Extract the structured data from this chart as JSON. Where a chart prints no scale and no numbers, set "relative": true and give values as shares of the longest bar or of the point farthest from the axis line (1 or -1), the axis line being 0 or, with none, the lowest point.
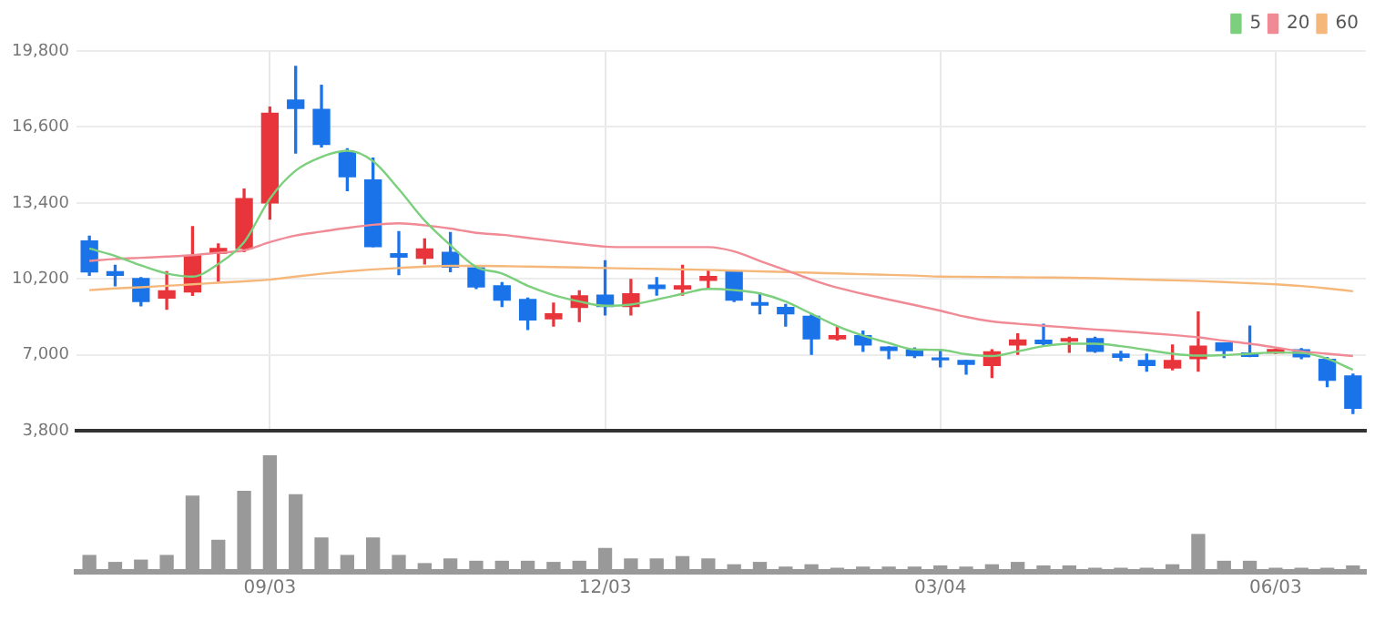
{
  "chart_data": [
    {
      "type": "candlestick",
      "categories": [
        null,
        null,
        null,
        null,
        null,
        null,
        null,
        null,
        null,
        null,
        null,
        null,
        null,
        null,
        null,
        null,
        null,
        null,
        null,
        null,
        null,
        null,
        null,
        null,
        null,
        null,
        null,
        null,
        null,
        null,
        null,
        null,
        null,
        null,
        null,
        null,
        null,
        null,
        null,
        null,
        null,
        null,
        null,
        null,
        null,
        null,
        null,
        null,
        null,
        null
      ],
      "ohlc": [
        [
          11800,
          12000,
          10350,
          10500
        ],
        [
          10500,
          10770,
          9910,
          10350
        ],
        [
          10220,
          10250,
          9070,
          9250
        ],
        [
          9390,
          10500,
          8920,
          9700
        ],
        [
          9650,
          12400,
          9510,
          11170
        ],
        [
          11280,
          11670,
          10100,
          11480
        ],
        [
          11480,
          13980,
          11350,
          13580
        ],
        [
          13400,
          17440,
          12720,
          17180
        ],
        [
          17730,
          19150,
          15500,
          17380
        ],
        [
          17340,
          18360,
          15760,
          15870
        ],
        [
          15550,
          15680,
          13920,
          14500
        ],
        [
          14370,
          15290,
          11560,
          11560
        ],
        [
          11260,
          12190,
          10380,
          11120
        ],
        [
          11070,
          11880,
          10830,
          11460
        ],
        [
          11320,
          12150,
          10510,
          10700
        ],
        [
          10670,
          10750,
          9800,
          9860
        ],
        [
          9910,
          10040,
          9040,
          9310
        ],
        [
          9330,
          9390,
          8070,
          8470
        ],
        [
          8520,
          9180,
          8210,
          8730
        ],
        [
          9000,
          9700,
          8410,
          9490
        ],
        [
          9520,
          10960,
          8680,
          9040
        ],
        [
          9040,
          10180,
          8680,
          9570
        ],
        [
          9940,
          10250,
          9520,
          9800
        ],
        [
          9780,
          10770,
          9520,
          9910
        ],
        [
          10140,
          10570,
          9780,
          10300
        ],
        [
          10490,
          10570,
          9250,
          9310
        ],
        [
          9200,
          9600,
          8730,
          9100
        ],
        [
          9000,
          9120,
          8210,
          8730
        ],
        [
          8620,
          8730,
          7030,
          7680
        ],
        [
          7680,
          8150,
          7630,
          7810
        ],
        [
          7810,
          8000,
          7150,
          7420
        ],
        [
          7330,
          7340,
          6840,
          7190
        ],
        [
          7210,
          7290,
          6890,
          6970
        ],
        [
          6870,
          7230,
          6500,
          6800
        ],
        [
          6760,
          6760,
          6190,
          6600
        ],
        [
          6560,
          7210,
          6050,
          7130
        ],
        [
          7420,
          7890,
          7030,
          7630
        ],
        [
          7620,
          8290,
          7420,
          7480
        ],
        [
          7580,
          7740,
          7110,
          7680
        ],
        [
          7680,
          7740,
          7110,
          7150
        ],
        [
          7030,
          7150,
          6760,
          6900
        ],
        [
          6760,
          7030,
          6320,
          6560
        ],
        [
          6450,
          7420,
          6370,
          6760
        ],
        [
          6840,
          8810,
          6320,
          7370
        ],
        [
          7500,
          7500,
          6890,
          7180
        ],
        [
          7080,
          8210,
          6930,
          6940
        ],
        [
          7080,
          7240,
          7060,
          7220
        ],
        [
          7210,
          7260,
          6840,
          6920
        ],
        [
          6810,
          6890,
          5660,
          5930
        ],
        [
          6110,
          6190,
          4530,
          4750
        ]
      ],
      "colors": [
        "#1a73e8",
        "#1a73e8",
        "#1a73e8",
        "#e8343b",
        "#e8343b",
        "#e8343b",
        "#e8343b",
        "#e8343b",
        "#1a73e8",
        "#1a73e8",
        "#1a73e8",
        "#1a73e8",
        "#1a73e8",
        "#e8343b",
        "#1a73e8",
        "#1a73e8",
        "#1a73e8",
        "#1a73e8",
        "#e8343b",
        "#e8343b",
        "#1a73e8",
        "#e8343b",
        "#1a73e8",
        "#e8343b",
        "#e8343b",
        "#1a73e8",
        "#1a73e8",
        "#1a73e8",
        "#1a73e8",
        "#e8343b",
        "#1a73e8",
        "#1a73e8",
        "#1a73e8",
        "#1a73e8",
        "#1a73e8",
        "#e8343b",
        "#e8343b",
        "#1a73e8",
        "#e8343b",
        "#1a73e8",
        "#1a73e8",
        "#1a73e8",
        "#e8343b",
        "#e8343b",
        "#1a73e8",
        "#1a73e8",
        "#e8343b",
        "#1a73e8",
        "#1a73e8",
        "#1a73e8"
      ],
      "series": [
        {
          "name": "5",
          "type": "line",
          "color": "#7ccf7c",
          "values": [
            11480,
            11170,
            10770,
            10430,
            10300,
            10830,
            11750,
            13580,
            14760,
            15340,
            15600,
            15160,
            13980,
            12660,
            11620,
            10700,
            10430,
            9910,
            9520,
            9250,
            9070,
            9120,
            9330,
            9570,
            9780,
            9730,
            9590,
            9250,
            8730,
            8210,
            7810,
            7500,
            7230,
            7210,
            7030,
            6950,
            7150,
            7370,
            7470,
            7470,
            7370,
            7210,
            7050,
            6970,
            6990,
            7050,
            7100,
            7080,
            6840,
            6370
          ]
        },
        {
          "name": "20",
          "type": "line",
          "color": "#f08a95",
          "values": [
            10960,
            11040,
            11090,
            11140,
            11200,
            11300,
            11400,
            11750,
            12030,
            12190,
            12350,
            12480,
            12540,
            12460,
            12320,
            12140,
            12060,
            11930,
            11800,
            11670,
            11560,
            11540,
            11540,
            11540,
            11540,
            11360,
            10960,
            10570,
            10170,
            9830,
            9570,
            9330,
            9100,
            8860,
            8600,
            8410,
            8310,
            8230,
            8150,
            8070,
            8000,
            7920,
            7840,
            7740,
            7600,
            7470,
            7310,
            7150,
            7050,
            6950
          ]
        },
        {
          "name": "60",
          "type": "line",
          "color": "#f5b77a",
          "values": [
            9730,
            9800,
            9850,
            9910,
            9970,
            10040,
            10100,
            10170,
            10300,
            10420,
            10520,
            10600,
            10660,
            10720,
            10750,
            10750,
            10740,
            10720,
            10700,
            10680,
            10660,
            10640,
            10620,
            10600,
            10580,
            10550,
            10520,
            10490,
            10460,
            10430,
            10400,
            10370,
            10340,
            10300,
            10290,
            10280,
            10270,
            10260,
            10250,
            10230,
            10200,
            10170,
            10140,
            10110,
            10070,
            10020,
            9970,
            9900,
            9800,
            9680
          ]
        }
      ],
      "ylim": [
        3800,
        19800
      ],
      "yticks": [
        {
          "value": 3800,
          "label": "3,800"
        },
        {
          "value": 7000,
          "label": "7,000"
        },
        {
          "value": 10200,
          "label": "10,200"
        },
        {
          "value": 13400,
          "label": "13,400"
        },
        {
          "value": 16600,
          "label": "16,600"
        },
        {
          "value": 19800,
          "label": "19,800"
        }
      ],
      "grid": true,
      "legend": "top right",
      "tick_labels": "y",
      "marker": "none"
    },
    {
      "type": "bar",
      "categories": [
        null,
        null,
        null,
        null,
        null,
        null,
        null,
        "09/03",
        null,
        null,
        null,
        null,
        null,
        null,
        null,
        null,
        null,
        null,
        null,
        null,
        "12/03",
        null,
        null,
        null,
        null,
        null,
        null,
        null,
        null,
        null,
        null,
        null,
        null,
        "03/04",
        null,
        null,
        null,
        null,
        null,
        null,
        null,
        null,
        null,
        null,
        null,
        null,
        "06/03",
        null,
        null,
        null
      ],
      "values": [
        0.14,
        0.08,
        0.1,
        0.14,
        0.65,
        0.27,
        0.69,
        1,
        0.66,
        0.29,
        0.14,
        0.29,
        0.14,
        0.07,
        0.11,
        0.09,
        0.09,
        0.09,
        0.08,
        0.09,
        0.2,
        0.11,
        0.11,
        0.13,
        0.11,
        0.06,
        0.08,
        0.04,
        0.06,
        0.03,
        0.04,
        0.04,
        0.04,
        0.05,
        0.04,
        0.06,
        0.08,
        0.05,
        0.05,
        0.03,
        0.03,
        0.03,
        0.06,
        0.32,
        0.09,
        0.09,
        0.03,
        0.03,
        0.03,
        0.05
      ],
      "color": "#999999",
      "relative": true,
      "tick_labels": "x"
    }
  ]
}
